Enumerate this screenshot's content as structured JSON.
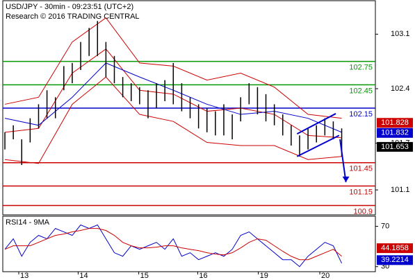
{
  "chart_data": {
    "type": "hlc-bar",
    "title": "USD/JPY - 30min - 09:23:51 (UTC+2)",
    "subtitle": "Research © 2016 TRADING CENTRAL",
    "bar_color": "#000000",
    "x": [
      0,
      1,
      2,
      3,
      4,
      5,
      6,
      7,
      8,
      9,
      10,
      11,
      12,
      13,
      14,
      15,
      16,
      17,
      18,
      19,
      20,
      21,
      22,
      23,
      24,
      25,
      26,
      27,
      28,
      29,
      30,
      31,
      32,
      33,
      34,
      35,
      36,
      37,
      38,
      39,
      40
    ],
    "high": [
      101.84,
      101.93,
      101.75,
      102.02,
      102.2,
      102.38,
      102.29,
      102.69,
      102.73,
      103.0,
      103.18,
      103.27,
      103.0,
      102.82,
      102.55,
      102.47,
      102.42,
      102.38,
      102.47,
      102.51,
      102.73,
      102.47,
      102.29,
      102.2,
      102.15,
      102.11,
      102.2,
      102.07,
      102.29,
      102.47,
      102.42,
      102.33,
      102.2,
      102.07,
      101.93,
      101.8,
      101.89,
      101.93,
      102.02,
      101.98,
      101.89
    ],
    "low": [
      101.62,
      101.75,
      101.42,
      101.71,
      101.89,
      102.02,
      102.02,
      102.38,
      102.47,
      102.64,
      102.82,
      102.82,
      102.55,
      102.47,
      102.29,
      102.24,
      102.2,
      102.02,
      102.15,
      102.24,
      102.2,
      102.11,
      102.02,
      101.89,
      101.84,
      101.8,
      101.8,
      101.75,
      101.98,
      102.2,
      102.07,
      101.98,
      101.93,
      101.8,
      101.67,
      101.53,
      101.62,
      101.71,
      101.8,
      101.75,
      101.53
    ],
    "overlay_x": [
      0,
      4,
      8,
      12,
      16,
      20,
      24,
      28,
      32,
      36,
      40
    ],
    "overlays": [
      {
        "color": "#cc0000",
        "values": [
          102.2,
          102.29,
          103.0,
          103.31,
          102.73,
          102.69,
          102.51,
          102.6,
          102.42,
          102.07,
          102.02
        ]
      },
      {
        "color": "#cc0000",
        "values": [
          101.49,
          101.44,
          102.2,
          102.55,
          102.07,
          101.98,
          101.71,
          101.67,
          101.67,
          101.49,
          101.53
        ]
      },
      {
        "color": "#cc0000",
        "values": [
          101.84,
          101.89,
          102.6,
          102.91,
          102.38,
          102.33,
          102.11,
          102.15,
          102.07,
          101.8,
          101.77
        ]
      },
      {
        "color": "#0000cc",
        "values": [
          102.02,
          101.93,
          102.29,
          102.73,
          102.55,
          102.38,
          102.2,
          102.07,
          102.11,
          102.02,
          101.84
        ]
      }
    ],
    "channel": {
      "color": "#0000cc",
      "lines": [
        {
          "x": [
            34.7,
            39.3
          ],
          "values": [
            101.82,
            102.08
          ]
        },
        {
          "x": [
            34.7,
            39.7
          ],
          "values": [
            101.53,
            101.8
          ]
        }
      ]
    },
    "arrow": {
      "color": "#0000cc",
      "x": [
        39.8,
        40.5
      ],
      "values": [
        101.75,
        101.2
      ]
    },
    "levels": [
      {
        "value": 102.75,
        "color": "#009900"
      },
      {
        "value": 102.45,
        "color": "#009900"
      },
      {
        "value": 102.15,
        "color": "#0000cc"
      },
      {
        "value": 101.45,
        "color": "#cc0000"
      },
      {
        "value": 101.15,
        "color": "#cc0000"
      },
      {
        "value": 100.9,
        "color": "#cc0000"
      }
    ],
    "last_values": [
      {
        "value": 101.828,
        "color": "#cc0000"
      },
      {
        "value": 101.832,
        "color": "#0000cc"
      },
      {
        "value": 101.653,
        "color": "#000000"
      }
    ],
    "xlim": [
      -0.25,
      44
    ],
    "ylim": [
      100.78,
      103.53
    ],
    "yticks": [
      103.1,
      102.4,
      101.7,
      101.1
    ],
    "xticks": [
      {
        "value": 1.65,
        "label": "13"
      },
      {
        "value": 8.7,
        "label": "14"
      },
      {
        "value": 15.9,
        "label": "15"
      },
      {
        "value": 22.9,
        "label": "16"
      },
      {
        "value": 30.1,
        "label": "19"
      },
      {
        "value": 37.4,
        "label": "20"
      }
    ],
    "rsi": {
      "title": "RSI14 - 9MA",
      "ylim": [
        25,
        80
      ],
      "yticks": [
        70,
        30
      ],
      "series": [
        {
          "color": "#0000cc",
          "values": [
            47.2,
            57.6,
            40.3,
            54.1,
            61,
            57.6,
            67.9,
            64.5,
            61,
            71.4,
            67.9,
            71.4,
            57.6,
            43.8,
            40.3,
            50.7,
            47.2,
            50.7,
            54.1,
            47.2,
            57.6,
            40.3,
            43.8,
            36.9,
            40.3,
            43.8,
            40.3,
            47.2,
            61,
            64.5,
            57.6,
            50.7,
            43.8,
            36.9,
            36.9,
            30,
            40.3,
            47.2,
            54.1,
            50.7,
            33.4
          ]
        },
        {
          "color": "#cc0000",
          "values": [
            47.2,
            50.7,
            50.7,
            50.7,
            54.1,
            57.6,
            61,
            62.4,
            64.5,
            65.9,
            67.9,
            67.9,
            65.9,
            61,
            54.1,
            50.7,
            48.6,
            48.6,
            49.3,
            50.7,
            50.7,
            48.6,
            47.2,
            45.9,
            43.8,
            42.4,
            41.7,
            43.8,
            48.6,
            54.1,
            57.6,
            56.2,
            50.7,
            45.2,
            40.3,
            36.9,
            36.9,
            40.3,
            43.8,
            47.2,
            40.3
          ]
        }
      ],
      "last_values": [
        {
          "value": 44.1858,
          "color": "#cc0000"
        },
        {
          "value": 39.2214,
          "color": "#0000cc"
        }
      ]
    }
  }
}
